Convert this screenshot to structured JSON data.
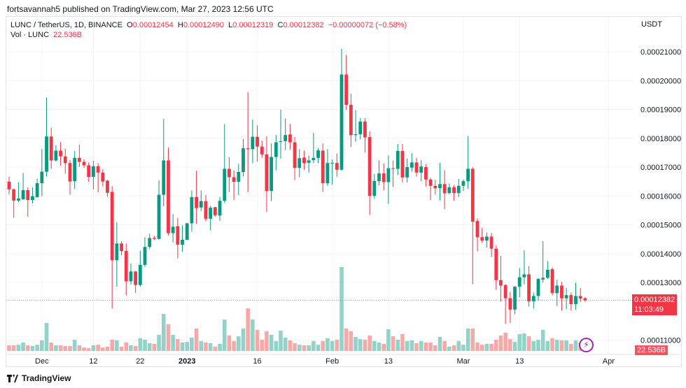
{
  "publish_line": "fortsavannah5 published on TradingView.com, Mar 27, 2023 12:56 UTC",
  "legend": {
    "symbol": "LUNC / TetherUS, 1D, BINANCE",
    "o_label": "O",
    "o": "0.00012454",
    "h_label": "H",
    "h": "0.00012490",
    "l_label": "L",
    "l": "0.00012319",
    "c_label": "C",
    "c": "0.00012382",
    "change": "−0.00000072 (−0.58%)",
    "vol_label": "Vol · LUNC",
    "vol": "22.536B"
  },
  "price_axis_unit": "USDT",
  "last_price_tag": {
    "price": "0.00012382",
    "countdown": "11:03:49"
  },
  "volume_tag": "22.536B",
  "brand": "TradingView",
  "colors": {
    "up": "#089981",
    "down": "#f23645",
    "up_volume": "#92d2c9",
    "down_volume": "#f7a9a7",
    "grid": "#f3f4f7",
    "alert": "#9c27b0"
  },
  "icons": {
    "alert": "lightning-bolt-icon",
    "logo": "tradingview-logo-icon"
  },
  "chart_data": {
    "type": "candlestick",
    "volume_unit": "B",
    "ylim": [
      0.000105,
      0.000215
    ],
    "y_ticks": [
      "0.00021000",
      "0.00020000",
      "0.00019000",
      "0.00018000",
      "0.00017000",
      "0.00016000",
      "0.00015000",
      "0.00014000",
      "0.00013000",
      "0.00011000"
    ],
    "x_ticks": [
      {
        "label": "Dec",
        "date": "2022-12-01"
      },
      {
        "label": "12",
        "date": "2022-12-12"
      },
      {
        "label": "22",
        "date": "2022-12-22"
      },
      {
        "label": "2023",
        "date": "2023-01-01"
      },
      {
        "label": "16",
        "date": "2023-01-16"
      },
      {
        "label": "Feb",
        "date": "2023-02-01"
      },
      {
        "label": "13",
        "date": "2023-02-13"
      },
      {
        "label": "Mar",
        "date": "2023-03-01"
      },
      {
        "label": "13",
        "date": "2023-03-13"
      },
      {
        "label": "Apr",
        "date": "2023-04-01"
      }
    ],
    "columns": [
      "date",
      "open",
      "high",
      "low",
      "close",
      "volume"
    ],
    "candles": [
      [
        "2022-11-24",
        0.0001649,
        0.0001667,
        0.0001606,
        0.0001623,
        18
      ],
      [
        "2022-11-25",
        0.0001623,
        0.0001625,
        0.0001524,
        0.0001584,
        18
      ],
      [
        "2022-11-26",
        0.0001584,
        0.0001647,
        0.0001578,
        0.0001591,
        20
      ],
      [
        "2022-11-27",
        0.0001588,
        0.000168,
        0.0001587,
        0.000162,
        27
      ],
      [
        "2022-11-28",
        0.000162,
        0.000163,
        0.0001528,
        0.0001586,
        18
      ],
      [
        "2022-11-29",
        0.0001586,
        0.0001629,
        0.0001574,
        0.0001599,
        16
      ],
      [
        "2022-11-30",
        0.0001596,
        0.000166,
        0.0001594,
        0.0001644,
        20
      ],
      [
        "2022-12-01",
        0.0001644,
        0.0001763,
        0.0001599,
        0.0001684,
        34
      ],
      [
        "2022-12-02",
        0.0001684,
        0.0001941,
        0.0001667,
        0.0001806,
        90
      ],
      [
        "2022-12-03",
        0.0001806,
        0.0001837,
        0.0001695,
        0.0001723,
        27
      ],
      [
        "2022-12-04",
        0.0001723,
        0.0001776,
        0.0001719,
        0.0001757,
        18
      ],
      [
        "2022-12-05",
        0.0001757,
        0.0001786,
        0.0001705,
        0.0001737,
        18
      ],
      [
        "2022-12-06",
        0.0001737,
        0.0001763,
        0.0001677,
        0.0001714,
        16
      ],
      [
        "2022-12-07",
        0.0001714,
        0.0001724,
        0.0001605,
        0.000165,
        16
      ],
      [
        "2022-12-08",
        0.0001651,
        0.0001756,
        0.0001625,
        0.0001732,
        36
      ],
      [
        "2022-12-09",
        0.0001732,
        0.0001777,
        0.0001701,
        0.0001718,
        18
      ],
      [
        "2022-12-10",
        0.0001718,
        0.0001727,
        0.0001697,
        0.0001706,
        11
      ],
      [
        "2022-12-11",
        0.0001706,
        0.0001716,
        0.0001649,
        0.0001666,
        9
      ],
      [
        "2022-12-12",
        0.0001666,
        0.0001722,
        0.0001623,
        0.0001703,
        18
      ],
      [
        "2022-12-13",
        0.0001703,
        0.0001714,
        0.0001613,
        0.0001681,
        20
      ],
      [
        "2022-12-14",
        0.0001681,
        0.0001692,
        0.0001633,
        0.000165,
        11
      ],
      [
        "2022-12-15",
        0.0001653,
        0.0001655,
        0.0001598,
        0.0001611,
        14
      ],
      [
        "2022-12-16",
        0.0001614,
        0.0001634,
        0.0001209,
        0.0001377,
        36
      ],
      [
        "2022-12-17",
        0.0001377,
        0.0001509,
        0.0001285,
        0.0001435,
        34
      ],
      [
        "2022-12-18",
        0.0001435,
        0.0001443,
        0.0001394,
        0.0001409,
        14
      ],
      [
        "2022-12-19",
        0.0001409,
        0.0001435,
        0.0001255,
        0.0001304,
        27
      ],
      [
        "2022-12-20",
        0.0001304,
        0.0001366,
        0.0001293,
        0.0001338,
        18
      ],
      [
        "2022-12-21",
        0.0001338,
        0.0001339,
        0.0001263,
        0.0001291,
        16
      ],
      [
        "2022-12-22",
        0.0001291,
        0.000141,
        0.0001285,
        0.0001361,
        41
      ],
      [
        "2022-12-23",
        0.0001361,
        0.0001457,
        0.0001354,
        0.0001423,
        36
      ],
      [
        "2022-12-24",
        0.0001423,
        0.0001469,
        0.0001416,
        0.0001454,
        25
      ],
      [
        "2022-12-25",
        0.0001454,
        0.0001461,
        0.0001447,
        0.0001451,
        23
      ],
      [
        "2022-12-26",
        0.0001451,
        0.0001654,
        0.0001449,
        0.0001604,
        52
      ],
      [
        "2022-12-27",
        0.0001604,
        0.0001867,
        0.0001564,
        0.0001723,
        119
      ],
      [
        "2022-12-28",
        0.0001723,
        0.0001768,
        0.0001463,
        0.0001471,
        86
      ],
      [
        "2022-12-29",
        0.0001471,
        0.0001537,
        0.0001439,
        0.0001493,
        52
      ],
      [
        "2022-12-30",
        0.0001495,
        0.0001524,
        0.0001384,
        0.0001431,
        38
      ],
      [
        "2022-12-31",
        0.0001431,
        0.0001498,
        0.0001406,
        0.0001448,
        27
      ],
      [
        "2023-01-01",
        0.0001448,
        0.0001507,
        0.0001447,
        0.0001505,
        29
      ],
      [
        "2023-01-02",
        0.0001505,
        0.0001619,
        0.0001476,
        0.0001596,
        43
      ],
      [
        "2023-01-03",
        0.0001596,
        0.0001688,
        0.0001503,
        0.0001558,
        72
      ],
      [
        "2023-01-04",
        0.000156,
        0.0001619,
        0.0001548,
        0.0001582,
        32
      ],
      [
        "2023-01-05",
        0.0001582,
        0.0001603,
        0.0001512,
        0.000152,
        27
      ],
      [
        "2023-01-06",
        0.0001521,
        0.0001566,
        0.0001481,
        0.0001559,
        25
      ],
      [
        "2023-01-07",
        0.0001561,
        0.0001562,
        0.0001527,
        0.0001533,
        14
      ],
      [
        "2023-01-08",
        0.0001532,
        0.0001596,
        0.0001513,
        0.0001583,
        23
      ],
      [
        "2023-01-09",
        0.0001583,
        0.0001849,
        0.0001575,
        0.0001694,
        101
      ],
      [
        "2023-01-10",
        0.0001694,
        0.0001734,
        0.0001613,
        0.0001665,
        50
      ],
      [
        "2023-01-11",
        0.0001665,
        0.0001688,
        0.0001586,
        0.0001649,
        32
      ],
      [
        "2023-01-12",
        0.0001649,
        0.0001711,
        0.0001603,
        0.0001683,
        47
      ],
      [
        "2023-01-13",
        0.0001683,
        0.0001797,
        0.0001667,
        0.0001765,
        72
      ],
      [
        "2023-01-14",
        0.0001765,
        0.000196,
        0.0001613,
        0.0001762,
        137
      ],
      [
        "2023-01-15",
        0.0001762,
        0.0001865,
        0.0001713,
        0.0001805,
        101
      ],
      [
        "2023-01-16",
        0.0001805,
        0.0001845,
        0.0001719,
        0.0001771,
        68
      ],
      [
        "2023-01-17",
        0.0001771,
        0.0001792,
        0.0001732,
        0.0001744,
        36
      ],
      [
        "2023-01-18",
        0.0001744,
        0.0001807,
        0.0001544,
        0.0001617,
        63
      ],
      [
        "2023-01-19",
        0.0001617,
        0.0001782,
        0.0001582,
        0.0001735,
        52
      ],
      [
        "2023-01-20",
        0.0001735,
        0.0001811,
        0.0001689,
        0.0001786,
        32
      ],
      [
        "2023-01-21",
        0.0001788,
        0.0001899,
        0.000173,
        0.000179,
        65
      ],
      [
        "2023-01-22",
        0.000179,
        0.0001868,
        0.0001759,
        0.0001811,
        43
      ],
      [
        "2023-01-23",
        0.0001813,
        0.0001849,
        0.0001761,
        0.0001786,
        34
      ],
      [
        "2023-01-24",
        0.0001786,
        0.0001805,
        0.0001655,
        0.0001697,
        25
      ],
      [
        "2023-01-25",
        0.0001697,
        0.0001762,
        0.0001665,
        0.0001731,
        20
      ],
      [
        "2023-01-26",
        0.0001733,
        0.0001757,
        0.0001691,
        0.0001714,
        18
      ],
      [
        "2023-01-27",
        0.0001715,
        0.000174,
        0.0001681,
        0.0001723,
        18
      ],
      [
        "2023-01-28",
        0.0001724,
        0.0001819,
        0.0001714,
        0.0001732,
        32
      ],
      [
        "2023-01-29",
        0.0001732,
        0.0001766,
        0.0001714,
        0.0001758,
        20
      ],
      [
        "2023-01-30",
        0.0001757,
        0.0001782,
        0.0001614,
        0.0001644,
        32
      ],
      [
        "2023-01-31",
        0.0001644,
        0.0001762,
        0.0001635,
        0.0001714,
        41
      ],
      [
        "2023-02-01",
        0.0001713,
        0.0001726,
        0.0001639,
        0.0001715,
        32
      ],
      [
        "2023-02-02",
        0.0001714,
        0.0001747,
        0.0001667,
        0.0001691,
        36
      ],
      [
        "2023-02-03",
        0.0001691,
        0.000211,
        0.0001688,
        0.0002021,
        270
      ],
      [
        "2023-02-04",
        0.0002021,
        0.0002089,
        0.0001899,
        0.0001916,
        72
      ],
      [
        "2023-02-05",
        0.0001916,
        0.0001954,
        0.000177,
        0.0001811,
        63
      ],
      [
        "2023-02-06",
        0.0001811,
        0.0001898,
        0.0001788,
        0.0001814,
        45
      ],
      [
        "2023-02-07",
        0.0001814,
        0.000187,
        0.0001796,
        0.0001858,
        38
      ],
      [
        "2023-02-08",
        0.0001858,
        0.000187,
        0.000175,
        0.0001803,
        36
      ],
      [
        "2023-02-09",
        0.0001804,
        0.0001824,
        0.0001534,
        0.00016,
        50
      ],
      [
        "2023-02-10",
        0.00016,
        0.0001676,
        0.000159,
        0.0001652,
        32
      ],
      [
        "2023-02-11",
        0.0001651,
        0.0001723,
        0.0001637,
        0.0001678,
        27
      ],
      [
        "2023-02-12",
        0.0001678,
        0.0001712,
        0.0001619,
        0.0001648,
        23
      ],
      [
        "2023-02-13",
        0.0001648,
        0.000174,
        0.0001572,
        0.0001696,
        70
      ],
      [
        "2023-02-14",
        0.0001696,
        0.0001723,
        0.0001631,
        0.0001694,
        47
      ],
      [
        "2023-02-15",
        0.0001694,
        0.000178,
        0.0001672,
        0.0001756,
        36
      ],
      [
        "2023-02-16",
        0.0001756,
        0.000178,
        0.0001647,
        0.0001664,
        54
      ],
      [
        "2023-02-17",
        0.0001664,
        0.000173,
        0.0001647,
        0.00017,
        32
      ],
      [
        "2023-02-18",
        0.0001698,
        0.0001748,
        0.0001684,
        0.0001716,
        34
      ],
      [
        "2023-02-19",
        0.0001716,
        0.0001732,
        0.0001667,
        0.0001681,
        25
      ],
      [
        "2023-02-20",
        0.0001681,
        0.0001724,
        0.0001651,
        0.0001702,
        32
      ],
      [
        "2023-02-21",
        0.00017,
        0.000171,
        0.0001633,
        0.0001657,
        27
      ],
      [
        "2023-02-22",
        0.0001657,
        0.0001663,
        0.0001586,
        0.0001635,
        27
      ],
      [
        "2023-02-23",
        0.0001635,
        0.0001656,
        0.0001605,
        0.0001627,
        18
      ],
      [
        "2023-02-24",
        0.0001627,
        0.0001714,
        0.0001584,
        0.0001641,
        45
      ],
      [
        "2023-02-25",
        0.0001641,
        0.0001689,
        0.0001554,
        0.0001609,
        32
      ],
      [
        "2023-02-26",
        0.000161,
        0.0001643,
        0.0001605,
        0.000163,
        14
      ],
      [
        "2023-02-27",
        0.000163,
        0.0001638,
        0.0001584,
        0.000161,
        18
      ],
      [
        "2023-02-28",
        0.000161,
        0.0001659,
        0.0001596,
        0.0001635,
        32
      ],
      [
        "2023-03-01",
        0.0001635,
        0.0001657,
        0.0001617,
        0.0001651,
        20
      ],
      [
        "2023-03-02",
        0.0001651,
        0.0001808,
        0.0001625,
        0.0001694,
        72
      ],
      [
        "2023-03-03",
        0.0001694,
        0.0001699,
        0.0001294,
        0.0001511,
        72
      ],
      [
        "2023-03-04",
        0.0001513,
        0.0001522,
        0.0001408,
        0.0001457,
        27
      ],
      [
        "2023-03-05",
        0.0001457,
        0.000149,
        0.0001437,
        0.0001445,
        20
      ],
      [
        "2023-03-06",
        0.0001445,
        0.0001473,
        0.0001421,
        0.0001459,
        23
      ],
      [
        "2023-03-07",
        0.0001459,
        0.0001471,
        0.0001388,
        0.0001417,
        23
      ],
      [
        "2023-03-08",
        0.0001417,
        0.0001428,
        0.0001275,
        0.0001308,
        36
      ],
      [
        "2023-03-09",
        0.0001308,
        0.0001392,
        0.0001233,
        0.0001289,
        50
      ],
      [
        "2023-03-10",
        0.0001291,
        0.0001294,
        0.0001156,
        0.0001245,
        59
      ],
      [
        "2023-03-11",
        0.0001245,
        0.0001267,
        0.000116,
        0.0001206,
        38
      ],
      [
        "2023-03-12",
        0.0001206,
        0.0001287,
        0.000119,
        0.0001285,
        29
      ],
      [
        "2023-03-13",
        0.0001285,
        0.000135,
        0.0001249,
        0.0001318,
        54
      ],
      [
        "2023-03-14",
        0.0001318,
        0.0001411,
        0.0001294,
        0.0001328,
        56
      ],
      [
        "2023-03-15",
        0.0001328,
        0.0001357,
        0.0001217,
        0.0001235,
        47
      ],
      [
        "2023-03-16",
        0.0001235,
        0.0001265,
        0.0001209,
        0.0001253,
        32
      ],
      [
        "2023-03-17",
        0.0001253,
        0.0001316,
        0.0001237,
        0.0001312,
        36
      ],
      [
        "2023-03-18",
        0.000131,
        0.0001443,
        0.0001299,
        0.0001316,
        68
      ],
      [
        "2023-03-19",
        0.0001316,
        0.0001374,
        0.0001312,
        0.0001344,
        32
      ],
      [
        "2023-03-20",
        0.0001346,
        0.0001352,
        0.0001255,
        0.0001263,
        41
      ],
      [
        "2023-03-21",
        0.0001263,
        0.000131,
        0.0001218,
        0.0001289,
        36
      ],
      [
        "2023-03-22",
        0.0001289,
        0.0001302,
        0.0001202,
        0.0001245,
        34
      ],
      [
        "2023-03-23",
        0.0001245,
        0.0001281,
        0.0001207,
        0.0001256,
        34
      ],
      [
        "2023-03-24",
        0.0001256,
        0.0001265,
        0.0001202,
        0.0001225,
        23
      ],
      [
        "2023-03-25",
        0.0001225,
        0.0001299,
        0.0001205,
        0.0001253,
        34
      ],
      [
        "2023-03-26",
        0.0001253,
        0.0001281,
        0.0001232,
        0.0001244,
        27
      ],
      [
        "2023-03-27",
        0.00012454,
        0.0001249,
        0.00012319,
        0.00012382,
        22.536
      ]
    ]
  }
}
